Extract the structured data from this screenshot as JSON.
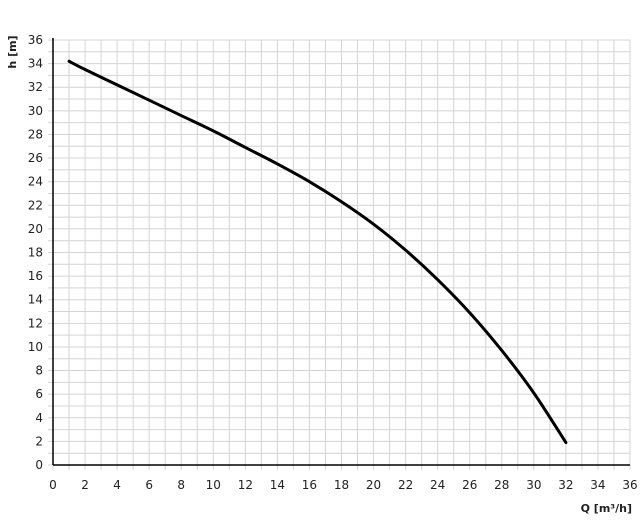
{
  "chart_data": {
    "type": "line",
    "title": "",
    "xlabel": "Q [m³/h]",
    "ylabel": "h [m]",
    "xlim": [
      0,
      36
    ],
    "ylim": [
      0,
      36
    ],
    "xticks": [
      0,
      2,
      4,
      6,
      8,
      10,
      12,
      14,
      16,
      18,
      20,
      22,
      24,
      26,
      28,
      30,
      32,
      34,
      36
    ],
    "yticks": [
      0,
      2,
      4,
      6,
      8,
      10,
      12,
      14,
      16,
      18,
      20,
      22,
      24,
      26,
      28,
      30,
      32,
      34,
      36
    ],
    "grid": true,
    "grid_minor_step": 1,
    "series": [
      {
        "color": "#000000",
        "x": [
          1,
          2,
          4,
          6,
          8,
          10,
          12,
          14,
          16,
          18,
          20,
          22,
          24,
          26,
          28,
          30,
          32
        ],
        "y": [
          34.2,
          33.5,
          32.2,
          30.9,
          29.6,
          28.3,
          26.9,
          25.5,
          24.0,
          22.3,
          20.4,
          18.2,
          15.7,
          12.9,
          9.7,
          6.1,
          1.9
        ]
      }
    ]
  }
}
